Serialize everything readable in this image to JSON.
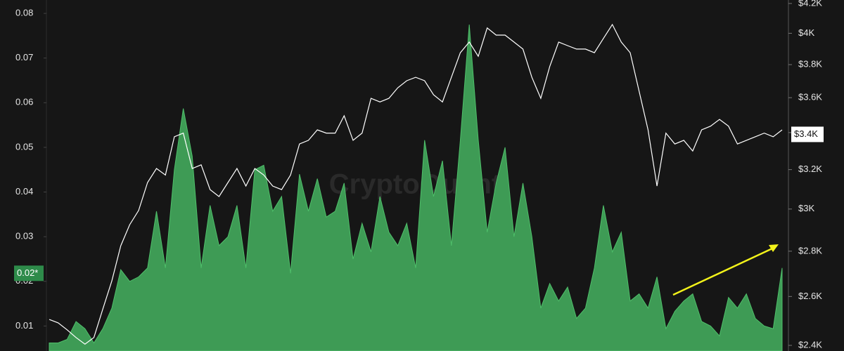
{
  "chart_data": {
    "type": "line",
    "watermark": "CryptoQuant",
    "ylim": [
      0.0044,
      0.083
    ],
    "yticks": [
      0.01,
      0.02,
      0.03,
      0.04,
      0.05,
      0.06,
      0.07,
      0.08
    ],
    "y2lim": [
      2378,
      4224
    ],
    "y2scale": "log",
    "y2ticks": [
      {
        "value": 2400,
        "label": "$2.4K"
      },
      {
        "value": 2600,
        "label": "$2.6K"
      },
      {
        "value": 2800,
        "label": "$2.8K"
      },
      {
        "value": 3000,
        "label": "$3K"
      },
      {
        "value": 3200,
        "label": "$3.2K"
      },
      {
        "value": 3400,
        "label": "$3.4K"
      },
      {
        "value": 3600,
        "label": "$3.6K"
      },
      {
        "value": 3800,
        "label": "$3.8K"
      },
      {
        "value": 4000,
        "label": "$4K"
      },
      {
        "value": 4200,
        "label": "$4.2K"
      }
    ],
    "y_marker": {
      "value": 0.0218,
      "label": "0.02*"
    },
    "y2_marker": {
      "value": 3390,
      "label": "$3.4K"
    },
    "series": [
      {
        "kind": "area",
        "color": "#3e9b55",
        "values": [
          0.0062,
          0.0062,
          0.007,
          0.011,
          0.0094,
          0.0062,
          0.0094,
          0.014,
          0.0226,
          0.02,
          0.021,
          0.023,
          0.0357,
          0.023,
          0.045,
          0.0587,
          0.048,
          0.023,
          0.037,
          0.028,
          0.03,
          0.037,
          0.023,
          0.045,
          0.046,
          0.0357,
          0.039,
          0.0218,
          0.044,
          0.0357,
          0.043,
          0.0344,
          0.0357,
          0.042,
          0.025,
          0.033,
          0.0266,
          0.039,
          0.031,
          0.028,
          0.033,
          0.023,
          0.0516,
          0.039,
          0.047,
          0.028,
          0.0516,
          0.0775,
          0.0516,
          0.031,
          0.042,
          0.05,
          0.03,
          0.042,
          0.03,
          0.014,
          0.0195,
          0.0156,
          0.0187,
          0.0117,
          0.014,
          0.023,
          0.037,
          0.0266,
          0.031,
          0.0156,
          0.0172,
          0.014,
          0.021,
          0.0094,
          0.0133,
          0.0156,
          0.0172,
          0.011,
          0.01,
          0.0078,
          0.0164,
          0.014,
          0.0172,
          0.0117,
          0.01,
          0.0094,
          0.023
        ]
      },
      {
        "kind": "line",
        "axis": "y2",
        "color": "#ffffff",
        "values": [
          2504,
          2490,
          2462,
          2431,
          2405,
          2431,
          2547,
          2667,
          2825,
          2924,
          2993,
          3133,
          3206,
          3172,
          3377,
          3397,
          3206,
          3225,
          3097,
          3062,
          3133,
          3206,
          3115,
          3206,
          3172,
          3115,
          3097,
          3172,
          3337,
          3357,
          3415,
          3397,
          3397,
          3495,
          3357,
          3397,
          3596,
          3575,
          3596,
          3659,
          3701,
          3722,
          3701,
          3617,
          3575,
          3722,
          3875,
          3943,
          3852,
          4035,
          3988,
          3988,
          3943,
          3898,
          3722,
          3596,
          3788,
          3943,
          3920,
          3898,
          3898,
          3875,
          3966,
          4058,
          3943,
          3875,
          3638,
          3415,
          3115,
          3397,
          3337,
          3357,
          3299,
          3415,
          3436,
          3474,
          3436,
          3337,
          3357,
          3377,
          3397,
          3377,
          3415
        ]
      }
    ]
  }
}
